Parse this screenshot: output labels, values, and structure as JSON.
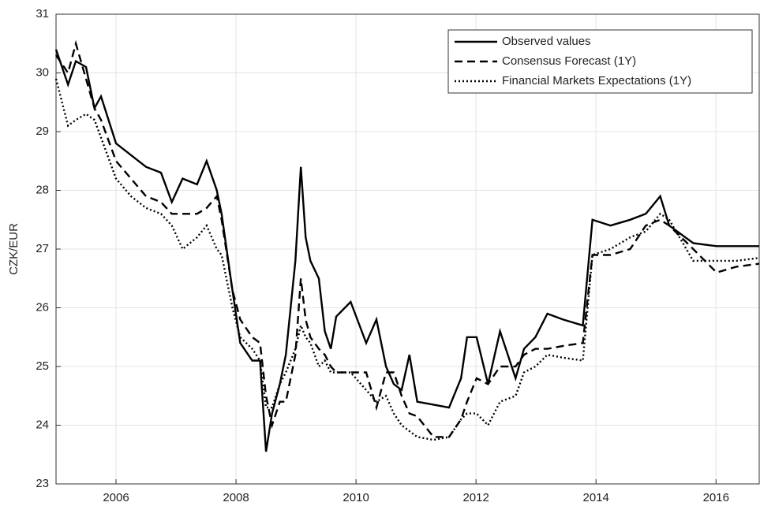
{
  "chart_data": {
    "type": "line",
    "ylabel": "CZK/EUR",
    "x": [
      2005.0,
      2005.2,
      2005.33,
      2005.5,
      2005.64,
      2005.75,
      2006.0,
      2006.25,
      2006.5,
      2006.75,
      2006.93,
      2007.11,
      2007.35,
      2007.51,
      2007.68,
      2007.76,
      2007.94,
      2008.07,
      2008.27,
      2008.4,
      2008.5,
      2008.6,
      2008.73,
      2008.83,
      2008.99,
      2009.08,
      2009.16,
      2009.24,
      2009.38,
      2009.48,
      2009.58,
      2009.67,
      2009.91,
      2010.17,
      2010.34,
      2010.5,
      2010.63,
      2010.76,
      2010.89,
      2011.02,
      2011.29,
      2011.55,
      2011.75,
      2011.85,
      2012.01,
      2012.2,
      2012.4,
      2012.66,
      2012.8,
      2012.99,
      2013.19,
      2013.45,
      2013.78,
      2013.94,
      2014.24,
      2014.57,
      2014.83,
      2015.07,
      2015.22,
      2015.62,
      2016.01,
      2016.34,
      2016.72
    ],
    "series": [
      {
        "name": "Observed values",
        "color": "#000000",
        "linestyle": "solid",
        "values": [
          30.4,
          29.8,
          30.2,
          30.1,
          29.4,
          29.6,
          28.8,
          28.6,
          28.4,
          28.3,
          27.8,
          28.2,
          28.1,
          28.5,
          28.0,
          27.6,
          26.3,
          25.4,
          25.1,
          25.1,
          23.55,
          24.2,
          24.7,
          25.2,
          26.8,
          28.4,
          27.2,
          26.8,
          26.5,
          25.6,
          25.3,
          25.85,
          26.1,
          25.4,
          25.8,
          25.0,
          24.7,
          24.6,
          25.2,
          24.4,
          24.35,
          24.3,
          24.8,
          25.5,
          25.5,
          24.7,
          25.6,
          24.8,
          25.3,
          25.5,
          25.9,
          25.8,
          25.7,
          27.5,
          27.4,
          27.5,
          27.6,
          27.9,
          27.4,
          27.1,
          27.05,
          27.05,
          27.05
        ]
      },
      {
        "name": "Consensus Forecast (1Y)",
        "color": "#000000",
        "linestyle": "dashed",
        "values": [
          30.3,
          30.0,
          30.5,
          29.9,
          29.4,
          29.2,
          28.5,
          28.2,
          27.9,
          27.8,
          27.6,
          27.6,
          27.6,
          27.7,
          27.9,
          27.5,
          26.3,
          25.8,
          25.5,
          25.4,
          24.5,
          24.0,
          24.4,
          24.4,
          25.2,
          26.5,
          25.8,
          25.5,
          25.3,
          25.2,
          25.0,
          24.9,
          24.9,
          24.9,
          24.3,
          24.9,
          24.9,
          24.5,
          24.2,
          24.15,
          23.8,
          23.8,
          24.1,
          24.4,
          24.8,
          24.7,
          25.0,
          25.0,
          25.2,
          25.3,
          25.3,
          25.35,
          25.4,
          26.9,
          26.9,
          27.0,
          27.4,
          27.5,
          27.4,
          27.0,
          26.6,
          26.7,
          26.75
        ]
      },
      {
        "name": "Financial Markets Expectations (1Y)",
        "color": "#000000",
        "linestyle": "dotted",
        "values": [
          29.9,
          29.1,
          29.2,
          29.3,
          29.2,
          28.9,
          28.2,
          27.9,
          27.7,
          27.6,
          27.4,
          27.0,
          27.2,
          27.4,
          27.0,
          26.9,
          26.0,
          25.5,
          25.3,
          25.1,
          24.3,
          24.3,
          24.7,
          24.9,
          25.3,
          25.7,
          25.5,
          25.4,
          25.0,
          25.1,
          24.9,
          24.9,
          24.9,
          24.6,
          24.4,
          24.5,
          24.2,
          24.0,
          23.9,
          23.8,
          23.75,
          23.8,
          24.1,
          24.2,
          24.2,
          24.0,
          24.4,
          24.5,
          24.9,
          25.0,
          25.2,
          25.15,
          25.1,
          26.9,
          27.0,
          27.2,
          27.3,
          27.6,
          27.5,
          26.8,
          26.8,
          26.8,
          26.85
        ]
      }
    ],
    "xlim": [
      2005,
      2016.72
    ],
    "xticks": [
      2006,
      2008,
      2010,
      2012,
      2014,
      2016
    ],
    "ylim": [
      23,
      31
    ],
    "yticks": [
      23,
      24,
      25,
      26,
      27,
      28,
      29,
      30,
      31
    ],
    "grid": true,
    "legend": "upper right"
  }
}
